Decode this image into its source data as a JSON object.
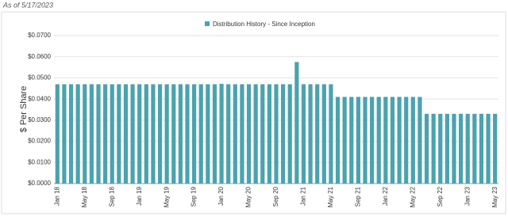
{
  "note": "As of 5/17/2023",
  "chart_data": {
    "type": "bar",
    "y_label": "$ Per Share",
    "categories": [
      "Jan 18",
      null,
      null,
      null,
      "May 18",
      null,
      null,
      null,
      "Sep 18",
      null,
      null,
      null,
      "Jan 19",
      null,
      null,
      null,
      "May 19",
      null,
      null,
      null,
      "Sep 19",
      null,
      null,
      null,
      "Jan 20",
      null,
      null,
      null,
      "May 20",
      null,
      null,
      null,
      "Sep 20",
      null,
      null,
      null,
      "Jan 21",
      null,
      null,
      null,
      "May 21",
      null,
      null,
      null,
      "Sep 21",
      null,
      null,
      null,
      "Jan 22",
      null,
      null,
      null,
      "May 22",
      null,
      null,
      null,
      "Sep 22",
      null,
      null,
      null,
      "Jan 23",
      null,
      null,
      null,
      "May 23"
    ],
    "series": [
      {
        "name": "Distribution History - Since Inception",
        "color": "#4aa3ae",
        "values": [
          0.047,
          0.047,
          0.047,
          0.047,
          0.047,
          0.047,
          0.047,
          0.047,
          0.047,
          0.047,
          0.047,
          0.047,
          0.047,
          0.047,
          0.047,
          0.047,
          0.047,
          0.047,
          0.047,
          0.047,
          0.047,
          0.047,
          0.047,
          0.047,
          0.0472,
          0.047,
          0.047,
          0.047,
          0.047,
          0.047,
          0.047,
          0.047,
          0.047,
          0.047,
          0.047,
          0.0575,
          0.047,
          0.047,
          0.047,
          0.047,
          0.047,
          0.041,
          0.041,
          0.041,
          0.041,
          0.041,
          0.041,
          0.041,
          0.041,
          0.041,
          0.041,
          0.041,
          0.041,
          0.041,
          0.033,
          0.033,
          0.033,
          0.033,
          0.033,
          0.033,
          0.033,
          0.033,
          0.033,
          0.033,
          0.033
        ]
      }
    ],
    "ylim": [
      0,
      0.07
    ],
    "yticks": [
      {
        "value": 0,
        "label": "$0.0000"
      },
      {
        "value": 0.01,
        "label": "$0.0100"
      },
      {
        "value": 0.02,
        "label": "$0.0200"
      },
      {
        "value": 0.03,
        "label": "$0.0300"
      },
      {
        "value": 0.04,
        "label": "$0.0400"
      },
      {
        "value": 0.05,
        "label": "$0.0500"
      },
      {
        "value": 0.06,
        "label": "$0.0600"
      },
      {
        "value": 0.07,
        "label": "$0.0700"
      }
    ],
    "grid": true
  }
}
